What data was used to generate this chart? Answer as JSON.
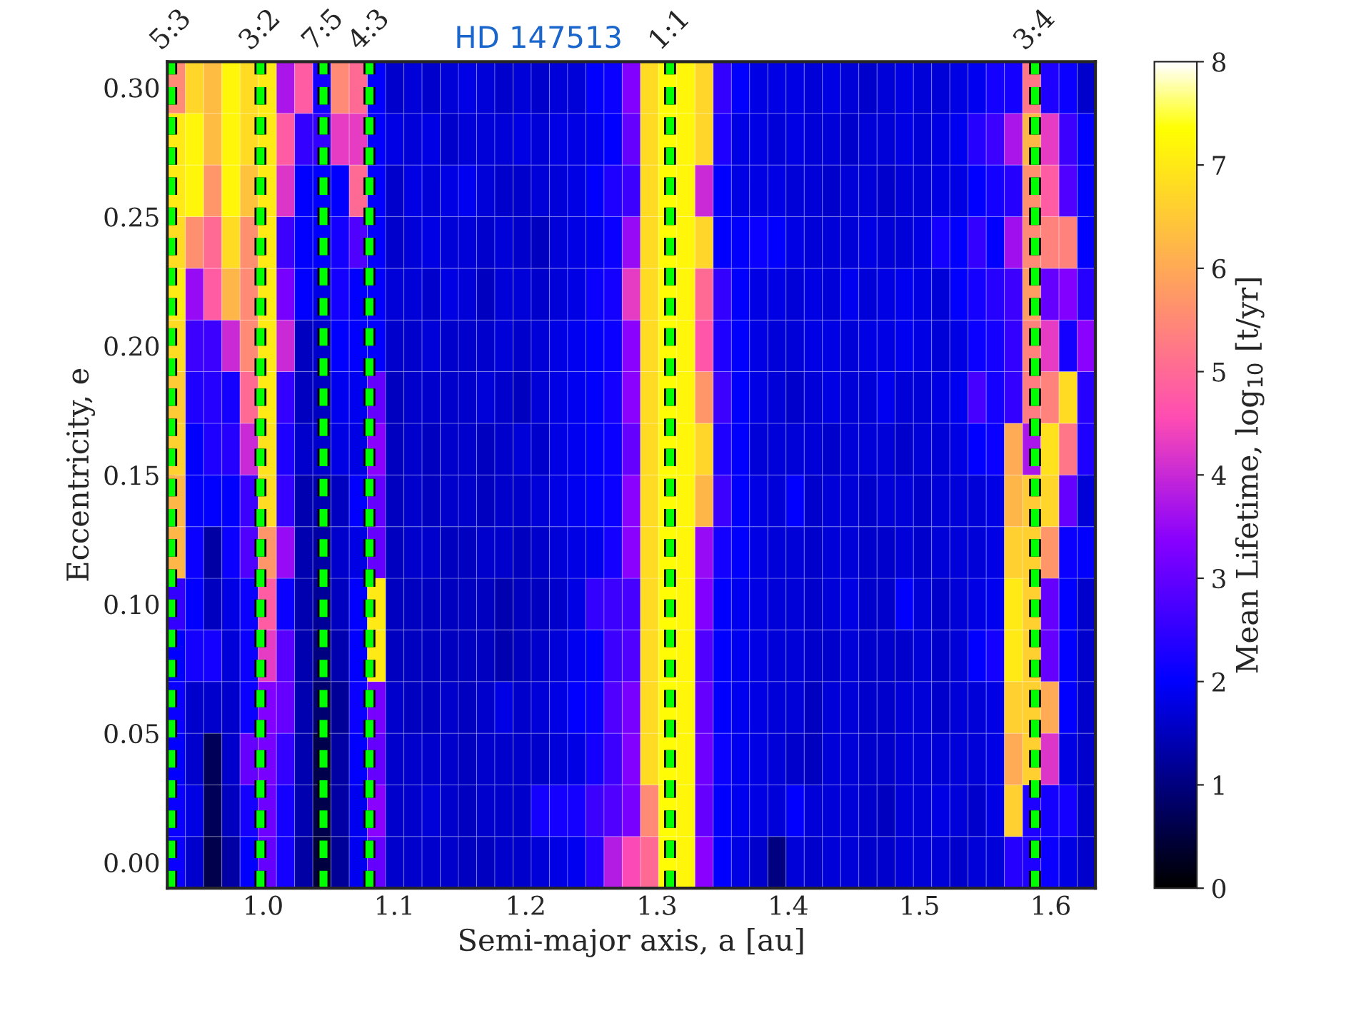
{
  "chart_data": {
    "type": "heatmap",
    "title": "HD 147513",
    "xlabel": "Semi-major axis, a [au]",
    "ylabel": "Eccentricity, e",
    "clabel": "Mean Lifetime, log$_{10}$ [t/yr]",
    "xlim": [
      0.927,
      1.634
    ],
    "ylim": [
      -0.01,
      0.31
    ],
    "xticks": [
      {
        "value": 1.0,
        "label": "1.0"
      },
      {
        "value": 1.1,
        "label": "1.1"
      },
      {
        "value": 1.2,
        "label": "1.2"
      },
      {
        "value": 1.3,
        "label": "1.3"
      },
      {
        "value": 1.4,
        "label": "1.4"
      },
      {
        "value": 1.5,
        "label": "1.5"
      },
      {
        "value": 1.6,
        "label": "1.6"
      }
    ],
    "yticks": [
      {
        "value": 0.0,
        "label": "0.00"
      },
      {
        "value": 0.05,
        "label": "0.05"
      },
      {
        "value": 0.1,
        "label": "0.10"
      },
      {
        "value": 0.15,
        "label": "0.15"
      },
      {
        "value": 0.2,
        "label": "0.20"
      },
      {
        "value": 0.25,
        "label": "0.25"
      },
      {
        "value": 0.3,
        "label": "0.30"
      }
    ],
    "clim": [
      0,
      8
    ],
    "cticks": [
      0,
      1,
      2,
      3,
      4,
      5,
      6,
      7,
      8
    ],
    "ref_lines": [
      {
        "axis": "x",
        "value": 0.93,
        "color": "#00ff00",
        "line_style": "dashed"
      },
      {
        "axis": "x",
        "value": 0.998,
        "color": "#00ff00",
        "line_style": "dashed"
      },
      {
        "axis": "x",
        "value": 1.046,
        "color": "#00ff00",
        "line_style": "dashed"
      },
      {
        "axis": "x",
        "value": 1.081,
        "color": "#00ff00",
        "line_style": "dashed"
      },
      {
        "axis": "x",
        "value": 1.31,
        "color": "#00ff00",
        "line_style": "dashed"
      },
      {
        "axis": "x",
        "value": 1.588,
        "color": "#00ff00",
        "line_style": "dashed"
      }
    ],
    "annotations": [
      {
        "text": "5:3",
        "x": 0.93,
        "y": 0.31
      },
      {
        "text": "3:2",
        "x": 0.998,
        "y": 0.31
      },
      {
        "text": "7:5",
        "x": 1.046,
        "y": 0.31
      },
      {
        "text": "4:3",
        "x": 1.081,
        "y": 0.31
      },
      {
        "text": "1:1",
        "x": 1.31,
        "y": 0.31
      },
      {
        "text": "3:4",
        "x": 1.588,
        "y": 0.31
      }
    ],
    "cells": [
      [
        5.5,
        6.7,
        6.3,
        7.2,
        6.8,
        7.0,
        3.7,
        4.8,
        2.2,
        5.5,
        5.0,
        2.0,
        1.6,
        1.7,
        1.6,
        1.7,
        1.8,
        1.7,
        1.6,
        1.7,
        1.6,
        1.7,
        1.7,
        2.0,
        2.1,
        3.3,
        6.8,
        7.3,
        7.2,
        6.7,
        2.5,
        2.0,
        1.8,
        1.8,
        1.8,
        1.7,
        1.8,
        1.7,
        1.6,
        1.7,
        1.8,
        1.7,
        1.7,
        1.8,
        1.9,
        2.2,
        2.2,
        5.2,
        2.3,
        2.1,
        1.6
      ],
      [
        7.0,
        7.2,
        6.3,
        7.2,
        6.8,
        7.0,
        4.8,
        2.5,
        2.5,
        4.3,
        4.3,
        2.0,
        1.8,
        1.7,
        1.8,
        1.6,
        1.7,
        1.7,
        1.7,
        1.8,
        1.7,
        1.8,
        1.8,
        1.9,
        2.0,
        3.0,
        6.8,
        7.3,
        7.2,
        6.7,
        2.3,
        1.8,
        1.8,
        1.7,
        1.8,
        1.7,
        1.7,
        1.6,
        1.7,
        1.7,
        1.8,
        1.7,
        1.8,
        1.9,
        2.4,
        2.6,
        3.7,
        6.2,
        4.3,
        2.6,
        2.0
      ],
      [
        7.0,
        7.2,
        5.7,
        7.2,
        6.4,
        7.0,
        4.2,
        2.0,
        2.0,
        2.0,
        5.0,
        2.0,
        1.6,
        1.8,
        1.7,
        1.8,
        1.9,
        1.7,
        1.6,
        1.6,
        1.7,
        1.7,
        1.8,
        2.0,
        2.3,
        2.6,
        6.8,
        7.3,
        7.2,
        4.0,
        2.0,
        1.8,
        1.8,
        1.8,
        1.7,
        1.7,
        1.6,
        1.7,
        1.7,
        1.6,
        1.7,
        1.7,
        1.8,
        1.8,
        2.0,
        2.2,
        2.4,
        5.6,
        4.8,
        2.8,
        2.0
      ],
      [
        6.8,
        5.6,
        5.0,
        6.8,
        5.6,
        7.0,
        2.6,
        2.0,
        2.0,
        2.2,
        2.8,
        2.0,
        1.6,
        1.7,
        1.8,
        1.7,
        1.7,
        1.6,
        1.7,
        1.6,
        1.5,
        1.7,
        1.8,
        1.9,
        2.1,
        3.5,
        6.8,
        7.3,
        7.2,
        6.7,
        2.0,
        2.0,
        2.1,
        2.0,
        1.8,
        1.7,
        1.7,
        1.7,
        1.8,
        1.7,
        1.7,
        1.8,
        2.2,
        2.0,
        2.5,
        2.0,
        3.6,
        5.5,
        5.4,
        5.4,
        2.0
      ],
      [
        7.0,
        3.5,
        4.8,
        6.2,
        5.5,
        7.0,
        3.2,
        2.0,
        1.8,
        2.2,
        2.0,
        2.0,
        1.7,
        1.7,
        1.6,
        1.8,
        1.7,
        1.5,
        1.7,
        1.7,
        1.6,
        1.7,
        1.8,
        2.1,
        2.2,
        4.3,
        6.8,
        7.3,
        7.2,
        5.0,
        2.5,
        2.0,
        1.8,
        1.8,
        1.7,
        1.8,
        1.7,
        1.9,
        1.7,
        1.8,
        1.9,
        1.8,
        1.7,
        2.0,
        2.2,
        2.4,
        2.6,
        5.8,
        3.0,
        3.3,
        2.4
      ],
      [
        6.8,
        2.6,
        2.6,
        4.0,
        5.5,
        7.0,
        4.0,
        1.5,
        1.6,
        2.0,
        2.0,
        2.0,
        1.6,
        1.6,
        1.7,
        1.6,
        1.6,
        1.6,
        1.7,
        1.6,
        1.7,
        1.8,
        1.9,
        2.0,
        2.1,
        3.4,
        6.8,
        7.3,
        7.2,
        4.7,
        2.3,
        2.0,
        1.8,
        1.7,
        1.7,
        1.8,
        1.8,
        1.7,
        1.8,
        1.8,
        1.9,
        1.8,
        1.7,
        1.8,
        2.1,
        2.2,
        2.5,
        5.4,
        4.3,
        2.2,
        3.4
      ],
      [
        6.5,
        2.3,
        2.4,
        2.2,
        5.0,
        7.0,
        2.5,
        1.5,
        1.5,
        1.9,
        1.9,
        3.0,
        1.5,
        1.6,
        1.6,
        1.6,
        1.6,
        1.7,
        1.6,
        1.5,
        1.7,
        1.8,
        1.9,
        2.0,
        2.2,
        3.4,
        6.8,
        7.3,
        7.2,
        5.7,
        2.6,
        2.0,
        1.8,
        1.7,
        1.6,
        1.7,
        1.8,
        1.7,
        1.7,
        1.9,
        1.7,
        1.7,
        1.8,
        1.9,
        2.7,
        2.2,
        2.5,
        5.3,
        5.4,
        6.8,
        2.4
      ],
      [
        6.6,
        2.0,
        2.3,
        2.4,
        4.0,
        6.9,
        2.3,
        1.6,
        1.6,
        1.8,
        1.8,
        3.4,
        1.5,
        1.6,
        1.5,
        1.6,
        1.6,
        1.5,
        1.6,
        1.7,
        1.6,
        1.8,
        1.9,
        2.0,
        2.1,
        3.0,
        6.8,
        7.3,
        7.2,
        6.7,
        2.3,
        2.0,
        1.7,
        1.7,
        1.7,
        1.7,
        1.6,
        1.7,
        1.7,
        1.7,
        1.6,
        1.7,
        1.7,
        1.8,
        2.0,
        2.1,
        6.0,
        3.7,
        6.9,
        5.2,
        2.3
      ],
      [
        6.2,
        2.0,
        2.0,
        2.0,
        2.6,
        6.8,
        2.5,
        1.4,
        1.4,
        1.5,
        2.0,
        3.0,
        1.5,
        1.6,
        1.5,
        1.6,
        1.6,
        1.5,
        1.6,
        1.6,
        1.7,
        1.8,
        1.9,
        2.0,
        2.1,
        3.4,
        6.8,
        7.3,
        7.2,
        6.2,
        2.6,
        2.0,
        1.8,
        1.7,
        2.0,
        1.6,
        1.7,
        1.7,
        1.6,
        1.7,
        1.7,
        1.6,
        1.7,
        1.7,
        1.7,
        1.8,
        6.2,
        6.5,
        6.7,
        3.0,
        1.7
      ],
      [
        6.2,
        2.1,
        1.3,
        2.1,
        2.8,
        5.7,
        3.5,
        1.4,
        1.3,
        1.6,
        1.8,
        3.0,
        1.5,
        1.6,
        1.6,
        1.5,
        1.5,
        1.6,
        1.6,
        1.5,
        1.6,
        1.7,
        1.8,
        1.9,
        2.2,
        3.4,
        6.8,
        7.3,
        7.2,
        3.5,
        2.2,
        2.0,
        1.8,
        1.7,
        1.7,
        1.6,
        1.7,
        1.7,
        1.6,
        1.6,
        1.7,
        1.6,
        1.7,
        1.7,
        1.7,
        1.8,
        6.6,
        6.6,
        5.7,
        2.1,
        2.0
      ],
      [
        2.5,
        2.0,
        1.5,
        1.8,
        2.1,
        4.8,
        2.1,
        1.4,
        1.2,
        1.5,
        2.0,
        7.0,
        1.5,
        1.5,
        1.5,
        1.5,
        1.5,
        1.5,
        1.4,
        1.5,
        1.5,
        1.6,
        1.8,
        2.5,
        2.6,
        2.7,
        6.8,
        7.3,
        7.2,
        3.3,
        2.0,
        1.9,
        1.8,
        1.7,
        1.7,
        1.6,
        1.7,
        1.8,
        1.6,
        1.6,
        2.0,
        1.7,
        1.6,
        1.7,
        1.8,
        1.9,
        7.0,
        6.6,
        3.0,
        2.0,
        1.6
      ],
      [
        2.0,
        2.2,
        2.2,
        1.7,
        2.1,
        4.3,
        2.9,
        1.4,
        1.0,
        1.4,
        2.0,
        7.0,
        1.5,
        1.5,
        1.5,
        1.5,
        1.5,
        1.5,
        1.4,
        1.5,
        1.6,
        1.7,
        1.9,
        2.0,
        2.6,
        2.8,
        6.8,
        7.3,
        7.2,
        2.8,
        2.0,
        1.9,
        1.8,
        1.7,
        1.7,
        1.6,
        1.6,
        1.7,
        1.6,
        1.6,
        1.6,
        1.7,
        1.6,
        1.7,
        2.0,
        2.2,
        7.0,
        6.6,
        3.0,
        2.0,
        1.6
      ],
      [
        2.1,
        1.6,
        1.6,
        1.6,
        2.1,
        3.3,
        3.0,
        1.4,
        0.9,
        1.2,
        2.1,
        3.2,
        1.6,
        1.5,
        1.5,
        1.6,
        1.5,
        1.6,
        1.8,
        1.6,
        1.7,
        1.8,
        2.0,
        2.1,
        2.8,
        3.2,
        6.8,
        7.3,
        7.2,
        3.0,
        2.0,
        1.9,
        1.8,
        1.7,
        1.7,
        1.5,
        1.7,
        1.7,
        1.6,
        1.6,
        1.7,
        1.7,
        1.6,
        1.7,
        1.7,
        1.8,
        6.6,
        6.6,
        6.0,
        2.0,
        1.6
      ],
      [
        2.0,
        1.6,
        0.7,
        1.6,
        3.0,
        3.2,
        2.5,
        1.4,
        0.6,
        1.3,
        2.0,
        3.0,
        1.6,
        1.6,
        1.6,
        1.6,
        1.5,
        1.6,
        1.6,
        1.6,
        1.6,
        1.7,
        1.8,
        2.2,
        2.6,
        3.3,
        6.8,
        7.3,
        7.2,
        3.1,
        2.1,
        1.9,
        1.8,
        1.7,
        1.6,
        1.5,
        1.7,
        1.7,
        1.6,
        1.6,
        1.7,
        1.7,
        1.7,
        1.7,
        1.7,
        1.8,
        6.0,
        6.6,
        4.2,
        1.8,
        1.6
      ],
      [
        2.1,
        1.8,
        0.7,
        1.5,
        2.2,
        3.1,
        2.2,
        1.4,
        0.6,
        1.3,
        1.9,
        3.4,
        1.6,
        1.6,
        1.7,
        1.6,
        1.5,
        1.6,
        1.6,
        1.6,
        2.2,
        2.2,
        2.2,
        2.6,
        2.8,
        3.2,
        5.5,
        7.3,
        7.2,
        3.0,
        2.0,
        1.9,
        1.8,
        1.7,
        2.0,
        1.7,
        1.7,
        1.7,
        1.6,
        1.5,
        1.7,
        1.7,
        1.8,
        1.7,
        1.6,
        1.8,
        6.6,
        2.3,
        2.2,
        2.2,
        1.6
      ],
      [
        2.1,
        1.6,
        0.6,
        1.3,
        2.0,
        3.0,
        2.2,
        1.3,
        0.5,
        1.2,
        1.9,
        3.0,
        1.6,
        1.6,
        1.6,
        1.6,
        1.5,
        1.5,
        1.6,
        1.6,
        1.7,
        1.8,
        1.9,
        2.4,
        3.8,
        4.5,
        5.0,
        7.3,
        7.2,
        3.4,
        2.0,
        1.8,
        1.6,
        1.0,
        1.7,
        1.6,
        1.7,
        1.7,
        1.6,
        1.6,
        1.7,
        1.7,
        1.7,
        1.6,
        1.7,
        1.7,
        2.4,
        2.3,
        2.1,
        1.8,
        1.6
      ]
    ]
  }
}
